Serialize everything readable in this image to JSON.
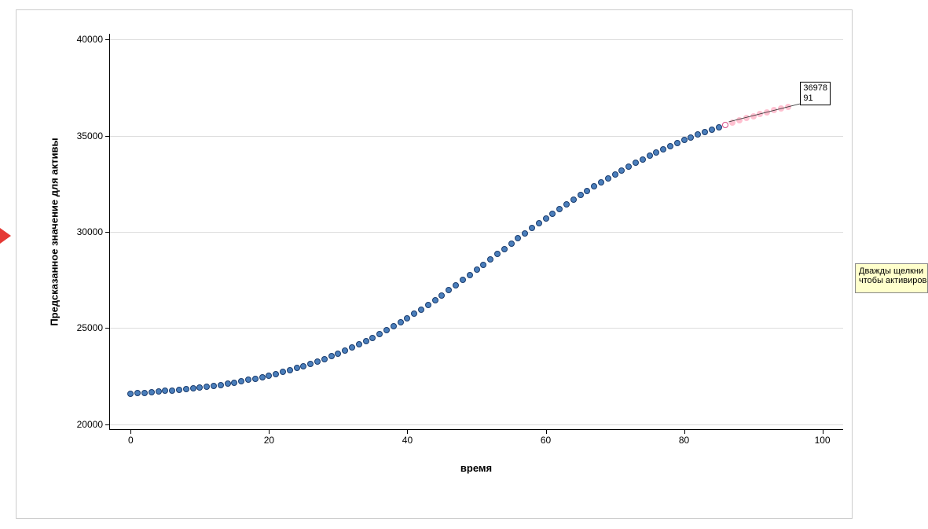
{
  "chart": {
    "type": "scatter",
    "xlabel": "время",
    "ylabel": "Предсказанное значение для активы",
    "label_fontsize": 13,
    "tick_fontsize": 12,
    "xlim": [
      -3,
      103
    ],
    "ylim": [
      19700,
      40300
    ],
    "xticks": [
      0,
      20,
      40,
      60,
      80,
      100
    ],
    "yticks": [
      20000,
      25000,
      30000,
      35000,
      40000
    ],
    "background_color": "#ffffff",
    "border_color": "#cccccc",
    "grid_color": "#dddddd",
    "axis_color": "#000000",
    "series": [
      {
        "name": "blue-data",
        "marker_size": 8,
        "fill_color": "#4a7ebb",
        "stroke_color": "#1a3c6e",
        "stroke_width": 1,
        "x": [
          0,
          1,
          2,
          3,
          4,
          5,
          6,
          7,
          8,
          9,
          10,
          11,
          12,
          13,
          14,
          15,
          16,
          17,
          18,
          19,
          20,
          21,
          22,
          23,
          24,
          25,
          26,
          27,
          28,
          29,
          30,
          31,
          32,
          33,
          34,
          35,
          36,
          37,
          38,
          39,
          40,
          41,
          42,
          43,
          44,
          45,
          46,
          47,
          48,
          49,
          50,
          51,
          52,
          53,
          54,
          55,
          56,
          57,
          58,
          59,
          60,
          61,
          62,
          63,
          64,
          65,
          66,
          67,
          68,
          69,
          70,
          71,
          72,
          73,
          74,
          75,
          76,
          77,
          78,
          79,
          80,
          81,
          82,
          83,
          84,
          85
        ],
        "y": [
          21600,
          21620,
          21640,
          21670,
          21700,
          21730,
          21760,
          21790,
          21820,
          21860,
          21900,
          21950,
          22000,
          22050,
          22110,
          22170,
          22230,
          22300,
          22370,
          22450,
          22530,
          22620,
          22710,
          22810,
          22910,
          23020,
          23140,
          23260,
          23390,
          23530,
          23670,
          23820,
          23980,
          24150,
          24320,
          24500,
          24690,
          24880,
          25080,
          25290,
          25510,
          25730,
          25960,
          26200,
          26450,
          26700,
          26960,
          27220,
          27490,
          27760,
          28030,
          28300,
          28570,
          28840,
          29110,
          29390,
          29660,
          29930,
          30190,
          30450,
          30700,
          30950,
          31200,
          31440,
          31680,
          31910,
          32140,
          32360,
          32580,
          32790,
          33000,
          33200,
          33400,
          33590,
          33780,
          33960,
          34130,
          34300,
          34460,
          34620,
          34770,
          34910,
          35050,
          35180,
          35310,
          35440
        ]
      },
      {
        "name": "pink-data",
        "marker_size": 8,
        "fill_color": "#ffc0d0",
        "stroke_color": "#ffc0d0",
        "stroke_width": 1,
        "x": [
          86,
          87,
          88,
          89,
          90,
          91,
          92,
          93,
          94,
          95
        ],
        "y": [
          35560,
          35680,
          35800,
          35910,
          36020,
          36130,
          36230,
          36330,
          36420,
          36510
        ]
      },
      {
        "name": "highlighted-point",
        "marker_size": 8,
        "fill_color": "#ffffff",
        "stroke_color": "#d45087",
        "stroke_width": 1.5,
        "x": [
          86
        ],
        "y": [
          35560
        ]
      }
    ],
    "annotation": {
      "text_line1": "36978",
      "text_line2": "91",
      "box_border": "#000000",
      "box_bg": "#ffffff",
      "x_anchor": 86,
      "y_anchor": 35560
    }
  },
  "tooltip": {
    "line1": "Дважды щелкни",
    "line2": "чтобы активирова",
    "bg_color": "#ffffcc",
    "border_color": "#888888"
  },
  "arrow": {
    "color": "#e53935"
  }
}
